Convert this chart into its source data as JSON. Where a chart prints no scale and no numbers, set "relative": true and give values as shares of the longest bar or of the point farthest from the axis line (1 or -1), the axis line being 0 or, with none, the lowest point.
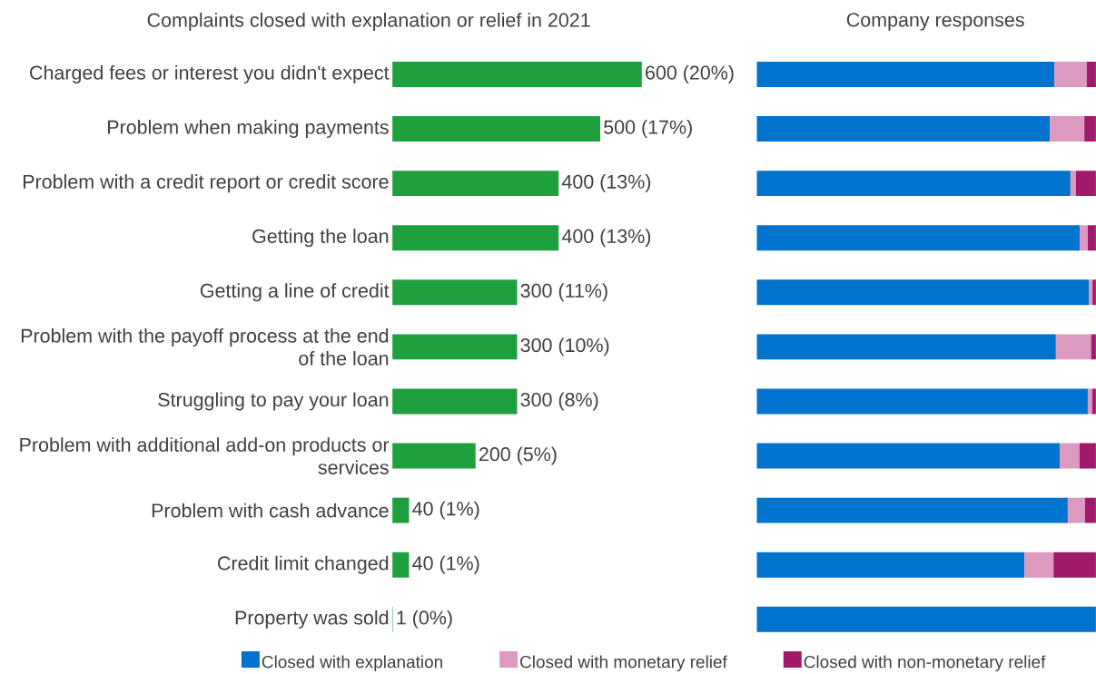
{
  "chart_data": [
    {
      "type": "bar",
      "orientation": "horizontal",
      "title": "Complaints closed with explanation or relief in 2021",
      "categories": [
        "Charged fees or interest you didn't expect",
        "Problem when making payments",
        "Problem with a credit report or credit score",
        "Getting the loan",
        "Getting a line of credit",
        "Problem with the payoff process at the end of the loan",
        "Struggling to pay your loan",
        "Problem with additional add-on products or services",
        "Problem with cash advance",
        "Credit limit changed",
        "Property was sold"
      ],
      "values": [
        600,
        500,
        400,
        400,
        300,
        300,
        300,
        200,
        40,
        40,
        1
      ],
      "value_labels": [
        "600 (20%)",
        "500 (17%)",
        "400 (13%)",
        "400 (13%)",
        "300 (11%)",
        "300 (10%)",
        "300 (8%)",
        "200 (5%)",
        "40 (1%)",
        "40 (1%)",
        "1 (0%)"
      ],
      "color": "#1fa03f"
    },
    {
      "type": "bar",
      "orientation": "horizontal",
      "stacked": true,
      "relative": true,
      "title": "Company responses",
      "categories": [
        null,
        null,
        null,
        null,
        null,
        null,
        null,
        null,
        null,
        null,
        null
      ],
      "legend": "bottom",
      "series": [
        {
          "name": "Closed with explanation",
          "color": "#0073cf",
          "values": [
            0.877,
            0.864,
            0.925,
            0.952,
            0.979,
            0.882,
            0.976,
            0.893,
            0.917,
            0.789,
            1.0
          ]
        },
        {
          "name": "Closed with monetary relief",
          "color": "#dc9ac0",
          "values": [
            0.096,
            0.102,
            0.016,
            0.024,
            0.011,
            0.104,
            0.013,
            0.059,
            0.051,
            0.086,
            0.0
          ]
        },
        {
          "name": "Closed with non-monetary relief",
          "color": "#a0196a",
          "values": [
            0.027,
            0.034,
            0.059,
            0.024,
            0.01,
            0.014,
            0.011,
            0.048,
            0.032,
            0.125,
            0.0
          ]
        }
      ]
    }
  ]
}
